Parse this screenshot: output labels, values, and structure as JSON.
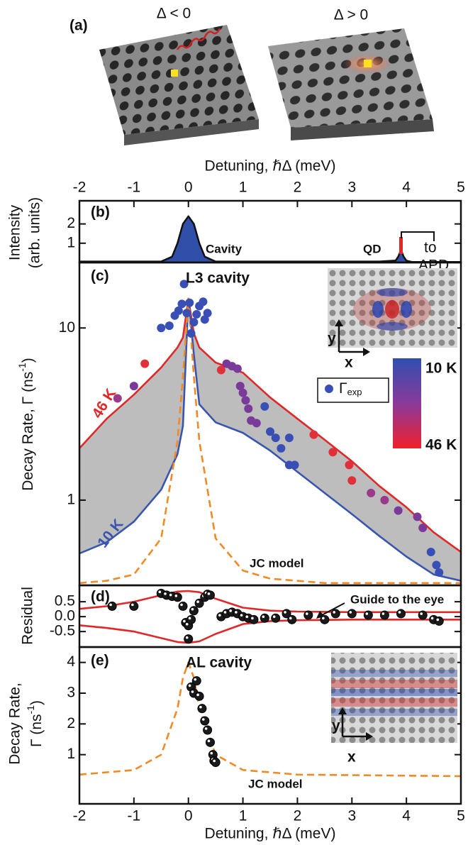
{
  "figure": {
    "panel_a": {
      "label": "(a)",
      "left_title": "Δ < 0",
      "right_title": "Δ > 0"
    }
  },
  "chart_data": [
    {
      "type": "line",
      "label": "(b)",
      "xlabel": "Detuning, ℏΔ (meV)",
      "ylabel": [
        "Intensity",
        "(arb. units)"
      ],
      "xlim": [
        -2,
        5
      ],
      "xticks": [
        -2,
        -1,
        0,
        1,
        2,
        3,
        4,
        5
      ],
      "ylim": [
        0,
        3.2
      ],
      "yticks": [
        1,
        2
      ],
      "annotations": {
        "cavity": "Cavity",
        "qd": "QD",
        "to": "to",
        "apd": "APD"
      },
      "series": [
        {
          "type": "area",
          "color": "#2f4fa8",
          "x": [
            -2,
            -0.5,
            -0.3,
            -0.2,
            -0.1,
            0,
            0.1,
            0.2,
            0.3,
            0.5,
            3.5,
            3.8,
            3.85,
            3.9,
            3.95,
            4.0,
            4.1,
            5
          ],
          "values": [
            0.05,
            0.05,
            0.3,
            1.0,
            2.0,
            2.4,
            2.0,
            1.0,
            0.3,
            0.05,
            0.05,
            0.1,
            0.3,
            0.65,
            0.3,
            0.1,
            0.03,
            0.03
          ]
        }
      ]
    },
    {
      "type": "line",
      "label": "(c)",
      "title": "L3 cavity",
      "ylabel": {
        "main": "Decay Rate, Γ (ns",
        "sup": "-1",
        "end": ")"
      },
      "log_y": true,
      "xlim": [
        -2,
        5
      ],
      "ylim": [
        0.32,
        24
      ],
      "yticks": [
        1,
        10
      ],
      "fill_between": [
        0,
        1
      ],
      "fill_color": "#bdbdbd",
      "colorbar": {
        "top": "10 K",
        "bottom": "46 K"
      },
      "inset_axes": {
        "x": "x",
        "y": "y"
      },
      "series": [
        {
          "type": "line",
          "name": "46 K",
          "color": "#e02828",
          "x": [
            -2,
            -1.5,
            -1,
            -0.5,
            -0.2,
            -0.1,
            0,
            0.1,
            0.2,
            0.5,
            1,
            1.5,
            2,
            2.5,
            3,
            3.5,
            4,
            4.5,
            5
          ],
          "values": [
            2.0,
            2.97,
            4.1,
            5.9,
            7.7,
            8.8,
            14.8,
            9.3,
            7.7,
            6.3,
            5.5,
            3.95,
            2.97,
            2.24,
            1.68,
            1.21,
            0.91,
            0.65,
            0.5
          ]
        },
        {
          "type": "line",
          "name": "10 K",
          "color": "#3a55b0",
          "x": [
            -2,
            -1.5,
            -1,
            -0.5,
            -0.2,
            -0.1,
            0,
            0.1,
            0.2,
            0.5,
            1,
            1.5,
            2,
            2.5,
            3,
            3.5,
            4,
            4.5,
            5
          ],
          "values": [
            0.49,
            0.57,
            0.75,
            1.15,
            1.85,
            2.7,
            14.8,
            7.0,
            3.6,
            2.83,
            2.46,
            1.94,
            1.46,
            1.1,
            0.83,
            0.62,
            0.47,
            0.37,
            0.34
          ]
        },
        {
          "type": "line",
          "name": "JC model",
          "color": "#f08a24",
          "dashed": true,
          "x": [
            -2,
            -1.5,
            -1,
            -0.5,
            -0.2,
            -0.1,
            0,
            0.1,
            0.2,
            0.5,
            1,
            1.5,
            2,
            2.5,
            3,
            3.5,
            4,
            4.5,
            5
          ],
          "values": [
            0.33,
            0.34,
            0.37,
            0.6,
            2.2,
            5.2,
            14.8,
            5.2,
            2.2,
            0.6,
            0.39,
            0.35,
            0.34,
            0.33,
            0.33,
            0.33,
            0.33,
            0.33,
            0.33
          ]
        },
        {
          "type": "scatter",
          "legend_label": "Γ",
          "legend_sub": "exp",
          "color": "#3a4fb5",
          "x": [
            -1.3,
            -1.0,
            -0.8,
            -0.5,
            -0.35,
            -0.25,
            -0.18,
            -0.12,
            -0.08,
            -0.03,
            0.02,
            0.05,
            0.1,
            0.15,
            0.2,
            0.27,
            0.3,
            0.35,
            0.6,
            0.7,
            0.8,
            0.9,
            0.95,
            1.0,
            1.05,
            1.1,
            1.15,
            1.25,
            1.4,
            1.5,
            1.6,
            1.7,
            1.85,
            1.85,
            1.95,
            2.3,
            2.65,
            2.95,
            3.0,
            3.35,
            3.6,
            3.85,
            4.2,
            4.3,
            4.45,
            4.55,
            4.6
          ],
          "values": [
            3.9,
            4.6,
            6.2,
            10,
            10.3,
            11.8,
            12.6,
            13.8,
            18,
            12.2,
            14,
            9.3,
            10.8,
            12,
            13.4,
            14.2,
            11.2,
            12.2,
            5.7,
            6.2,
            6.0,
            5.8,
            4.6,
            4.2,
            3.8,
            3.4,
            2.9,
            2.8,
            3.5,
            2.5,
            2.3,
            2.0,
            2.3,
            1.6,
            1.6,
            2.4,
            1.9,
            1.6,
            1.3,
            1.1,
            1.0,
            0.87,
            0.8,
            0.69,
            0.5,
            0.42,
            0.38
          ],
          "colors": [
            "#9a3a8a",
            "#7a3a9a",
            "#e0303a",
            "#3a4fb5",
            "#3a4fb5",
            "#3a4fb5",
            "#3a4fb5",
            "#3a4fb5",
            "#3a4fb5",
            "#3a4fb5",
            "#3a4fb5",
            "#3a4fb5",
            "#3a4fb5",
            "#3a4fb5",
            "#3a4fb5",
            "#3a4fb5",
            "#3a4fb5",
            "#3a4fb5",
            "#e0303a",
            "#7a3a9a",
            "#7a3a9a",
            "#7a3a9a",
            "#7a3a9a",
            "#7a3a9a",
            "#7a3a9a",
            "#7a3a9a",
            "#7a3a9a",
            "#7a3a9a",
            "#3a4fb5",
            "#3a4fb5",
            "#3a4fb5",
            "#3a4fb5",
            "#3a4fb5",
            "#3a4fb5",
            "#3a4fb5",
            "#e0303a",
            "#e0303a",
            "#e0303a",
            "#e0303a",
            "#9a3a8a",
            "#9a3a8a",
            "#7a3a9a",
            "#7a3a9a",
            "#7a3a9a",
            "#3a4fb5",
            "#3a4fb5",
            "#3a4fb5"
          ]
        }
      ]
    },
    {
      "type": "line",
      "label": "(d)",
      "ylabel": "Residual",
      "annotation": "Guide to the eye",
      "xlim": [
        -2,
        5
      ],
      "ylim": [
        -1.02,
        1.05
      ],
      "yticks": [
        0.5,
        {
          "value": 0,
          "label": "0.0"
        },
        -0.5
      ],
      "series": [
        {
          "type": "line",
          "color": "#e02828",
          "x": [
            -2,
            -1.5,
            -1,
            -0.5,
            -0.2,
            0,
            0.2,
            0.5,
            1,
            1.5,
            2,
            3,
            4,
            5
          ],
          "values": [
            0.26,
            0.35,
            0.5,
            0.72,
            0.84,
            0.86,
            0.82,
            0.6,
            0.3,
            0.2,
            0.17,
            0.15,
            0.15,
            0.15
          ]
        },
        {
          "type": "line",
          "color": "#e02828",
          "x": [
            -2,
            -1.5,
            -1,
            -0.5,
            -0.2,
            0,
            0.2,
            0.5,
            1,
            1.5,
            2,
            3,
            4,
            5
          ],
          "values": [
            -0.29,
            -0.38,
            -0.5,
            -0.72,
            -0.85,
            -0.88,
            -0.83,
            -0.58,
            -0.25,
            -0.15,
            -0.12,
            -0.1,
            -0.1,
            -0.1
          ]
        },
        {
          "type": "scatter",
          "color": "#1a1a1a",
          "x": [
            -1.4,
            -1.0,
            -0.5,
            -0.4,
            -0.3,
            -0.2,
            -0.1,
            -0.05,
            0,
            0.05,
            0,
            0.1,
            0.2,
            0.3,
            0.35,
            0.4,
            0.6,
            0.7,
            0.8,
            0.9,
            1.0,
            1.1,
            1.2,
            1.4,
            1.6,
            1.8,
            1.9,
            2.2,
            2.5,
            2.7,
            3.0,
            3.3,
            3.6,
            3.9,
            4.3,
            4.5,
            4.6
          ],
          "values": [
            0.35,
            0.35,
            0.78,
            0.72,
            0.68,
            0.65,
            0.35,
            -0.2,
            -0.3,
            -0.1,
            -0.75,
            0.2,
            0.45,
            0.65,
            0.75,
            0.72,
            0.0,
            0.1,
            0.15,
            0.1,
            0.0,
            -0.05,
            -0.1,
            -0.05,
            -0.05,
            0.1,
            -0.1,
            0.05,
            -0.1,
            0.1,
            0.1,
            0.05,
            0.05,
            0.1,
            0.05,
            -0.1,
            -0.15
          ]
        }
      ]
    },
    {
      "type": "line",
      "label": "(e)",
      "title": "AL cavity",
      "xlabel": "Detuning, ℏΔ (meV)",
      "ylabel": {
        "line1": "Decay Rate,",
        "main": "Γ (ns",
        "sup": "-1",
        "end": ")"
      },
      "inset_axes": {
        "x": "x",
        "y": "y"
      },
      "xlim": [
        -2,
        5
      ],
      "xticks": [
        -2,
        -1,
        0,
        1,
        2,
        3,
        4,
        5
      ],
      "ylim": [
        -0.6,
        4.5
      ],
      "yticks": [
        1,
        2,
        3,
        4
      ],
      "series": [
        {
          "type": "line",
          "name": "JC model",
          "color": "#f08a24",
          "dashed": true,
          "x": [
            -2,
            -1,
            -0.5,
            -0.2,
            -0.1,
            0,
            0.1,
            0.2,
            0.5,
            1,
            2,
            5
          ],
          "values": [
            0.35,
            0.5,
            1.0,
            2.5,
            3.5,
            4.0,
            3.5,
            2.5,
            1.0,
            0.5,
            0.35,
            0.3
          ]
        },
        {
          "type": "scatter",
          "color": "#1a1a1a",
          "x": [
            0.05,
            0.1,
            0.15,
            0.2,
            0.25,
            0.3,
            0.35,
            0.4,
            0.45,
            0.47,
            0.5
          ],
          "values": [
            3.2,
            3.0,
            3.4,
            2.9,
            2.5,
            2.1,
            1.8,
            1.4,
            1.0,
            0.8,
            0.75
          ]
        }
      ]
    }
  ]
}
